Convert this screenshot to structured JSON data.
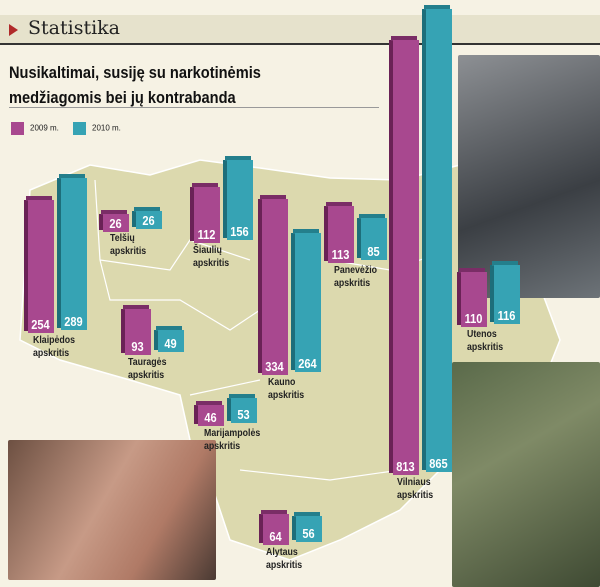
{
  "header": {
    "section": "Statistika"
  },
  "chart_data": {
    "type": "bar",
    "title": "Nusikaltimai, susiję su narkotinėmis medžiagomis bei jų kontrabanda",
    "legend": [
      {
        "name": "2009 m.",
        "color": "#a8488f"
      },
      {
        "name": "2010 m.",
        "color": "#36a3b4"
      }
    ],
    "categories": [
      "Klaipėdos apskritis",
      "Telšių apskritis",
      "Šiaulių apskritis",
      "Kauno apskritis",
      "Panevėžio apskritis",
      "Tauragės apskritis",
      "Marijampolės apskritis",
      "Alytaus apskritis",
      "Vilniaus apskritis",
      "Utenos apskritis"
    ],
    "series": [
      {
        "name": "2009 m.",
        "values": [
          254,
          26,
          112,
          334,
          113,
          93,
          46,
          64,
          813,
          110
        ]
      },
      {
        "name": "2010 m.",
        "values": [
          289,
          26,
          156,
          264,
          85,
          49,
          53,
          56,
          865,
          116
        ]
      }
    ],
    "regions": [
      {
        "l1": "Klaipėdos",
        "l2": "apskritis"
      },
      {
        "l1": "Telšių",
        "l2": "apskritis"
      },
      {
        "l1": "Šiaulių",
        "l2": "apskritis"
      },
      {
        "l1": "Kauno",
        "l2": "apskritis"
      },
      {
        "l1": "Panevėžio",
        "l2": "apskritis"
      },
      {
        "l1": "Tauragės",
        "l2": "apskritis"
      },
      {
        "l1": "Marijampolės",
        "l2": "apskritis"
      },
      {
        "l1": "Alytaus",
        "l2": "apskritis"
      },
      {
        "l1": "Vilniaus",
        "l2": "apskritis"
      },
      {
        "l1": "Utenos",
        "l2": "apskritis"
      }
    ]
  }
}
